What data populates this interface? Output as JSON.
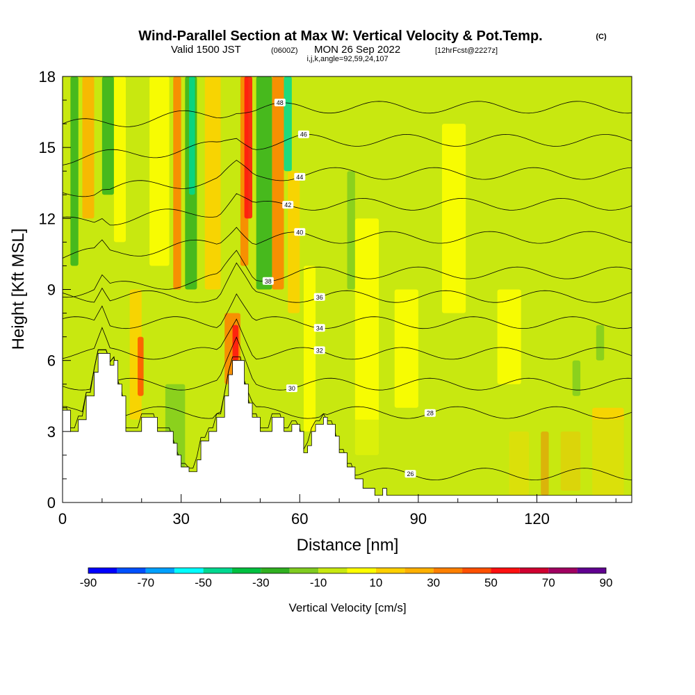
{
  "header": {
    "title": "Wind-Parallel Section at Max W: Vertical Velocity & Pot.Temp.",
    "copyright": "(C)",
    "subtitle_main": "Valid 1500 JST",
    "subtitle_utc": "(0600Z)",
    "subtitle_date": "MON 26 Sep 2022",
    "subtitle_fcst": "[12hrFcst@2227z]",
    "params": "i,j,k,angle=92,59,24,107"
  },
  "chart_data": {
    "type": "heatmap",
    "xlabel": "Distance [nm]",
    "ylabel": "Height [Kft MSL]",
    "xlim": [
      0,
      144
    ],
    "ylim": [
      0,
      18
    ],
    "x_ticks": [
      "0",
      "30",
      "60",
      "90",
      "120"
    ],
    "y_ticks": [
      "0",
      "3",
      "6",
      "9",
      "12",
      "15",
      "18"
    ],
    "x_tick_values": [
      0,
      30,
      60,
      90,
      120
    ],
    "y_tick_values": [
      0,
      3,
      6,
      9,
      12,
      15,
      18
    ],
    "colorbar": {
      "title": "Vertical Velocity [cm/s]",
      "levels": [
        -90,
        -80,
        -70,
        -60,
        -50,
        -40,
        -30,
        -20,
        -10,
        0,
        10,
        20,
        30,
        40,
        50,
        60,
        70,
        80,
        90
      ],
      "labels": [
        "-90",
        "-70",
        "-50",
        "-30",
        "-10",
        "10",
        "30",
        "50",
        "70",
        "90"
      ],
      "label_values": [
        -90,
        -70,
        -50,
        -30,
        -10,
        10,
        30,
        50,
        70,
        90
      ],
      "colors": [
        "#0000ff",
        "#0050ff",
        "#00a0ff",
        "#00ffff",
        "#00d890",
        "#00c040",
        "#30b020",
        "#80cc20",
        "#c8e810",
        "#ffff00",
        "#ffd000",
        "#ffb000",
        "#ff8000",
        "#ff5000",
        "#ff1010",
        "#d00030",
        "#a00060",
        "#600090"
      ]
    },
    "terrain_kft": [
      [
        0,
        3.9
      ],
      [
        2,
        3.0
      ],
      [
        4,
        3.5
      ],
      [
        6,
        4.5
      ],
      [
        8,
        5.5
      ],
      [
        9,
        6.3
      ],
      [
        11,
        6.3
      ],
      [
        12,
        5.8
      ],
      [
        13,
        6.0
      ],
      [
        14,
        5.0
      ],
      [
        15,
        4.5
      ],
      [
        16,
        3.0
      ],
      [
        18,
        3.0
      ],
      [
        20,
        3.6
      ],
      [
        22,
        3.6
      ],
      [
        24,
        3.0
      ],
      [
        26,
        3.0
      ],
      [
        28,
        2.5
      ],
      [
        29,
        2.0
      ],
      [
        30,
        1.5
      ],
      [
        32,
        1.3
      ],
      [
        34,
        1.8
      ],
      [
        35,
        2.6
      ],
      [
        37,
        3.0
      ],
      [
        39,
        3.6
      ],
      [
        41,
        4.5
      ],
      [
        42,
        5.4
      ],
      [
        43,
        6.0
      ],
      [
        45,
        6.0
      ],
      [
        46,
        5.0
      ],
      [
        47,
        4.2
      ],
      [
        48,
        3.6
      ],
      [
        50,
        3.0
      ],
      [
        52,
        3.0
      ],
      [
        53,
        3.6
      ],
      [
        55,
        3.6
      ],
      [
        56,
        3.0
      ],
      [
        58,
        3.3
      ],
      [
        60,
        3.0
      ],
      [
        61,
        2.1
      ],
      [
        62,
        2.4
      ],
      [
        63,
        3.0
      ],
      [
        64,
        3.3
      ],
      [
        66,
        3.6
      ],
      [
        67,
        3.3
      ],
      [
        69,
        2.8
      ],
      [
        70,
        2.1
      ],
      [
        72,
        1.5
      ],
      [
        74,
        1.0
      ],
      [
        76,
        0.6
      ],
      [
        79,
        0.3
      ],
      [
        81,
        0.6
      ],
      [
        82,
        0.3
      ],
      [
        144,
        0.3
      ]
    ],
    "theta_contours": [
      {
        "label": "26",
        "base": 1.2
      },
      {
        "label": "28",
        "base": 3.8
      },
      {
        "label": "30",
        "base": 5.0
      },
      {
        "label": "32",
        "base": 6.3
      },
      {
        "label": "34",
        "base": 7.6
      },
      {
        "label": "36",
        "base": 8.7
      },
      {
        "label": "38",
        "base": 9.7
      },
      {
        "label": "40",
        "base": 11.2
      },
      {
        "label": "42",
        "base": 12.6
      },
      {
        "label": "44",
        "base": 13.9
      },
      {
        "label": "46",
        "base": 15.3
      },
      {
        "label": "48",
        "base": 16.7
      }
    ]
  }
}
